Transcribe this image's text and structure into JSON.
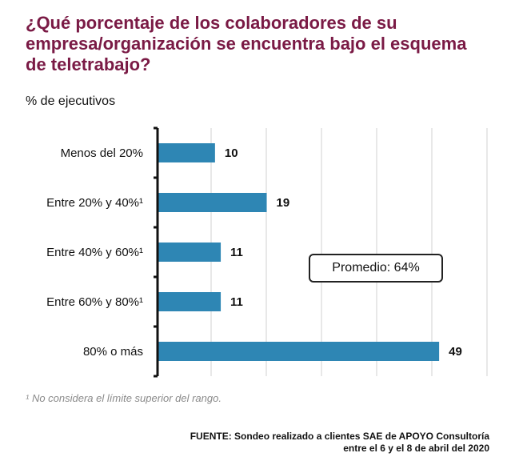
{
  "title": "¿Qué porcentaje de los colaboradores de su empresa/organización se encuentra bajo el esquema de teletrabajo?",
  "subtitle": "% de ejecutivos",
  "callout": "Promedio: 64%",
  "footnote": "¹ No considera el límite superior del rango.",
  "source_line1": "FUENTE: Sondeo realizado a clientes SAE de APOYO Consultoría",
  "source_line2": "entre el 6 y el 8 de abril del 2020",
  "colors": {
    "bar": "#2e86b4",
    "title": "#7a1a45",
    "grid": "#d0d0d0"
  },
  "chart_data": {
    "type": "bar",
    "orientation": "horizontal",
    "title": "¿Qué porcentaje de los colaboradores de su empresa/organización se encuentra bajo el esquema de teletrabajo?",
    "ylabel": "% de ejecutivos",
    "categories": [
      "Menos del 20%",
      "Entre 20% y 40%¹",
      "Entre 40% y 60%¹",
      "Entre 60% y 80%¹",
      "80% o más"
    ],
    "values": [
      10,
      19,
      11,
      11,
      49
    ],
    "xlim": [
      0,
      50
    ],
    "grid": true,
    "annotation": "Promedio: 64%"
  }
}
